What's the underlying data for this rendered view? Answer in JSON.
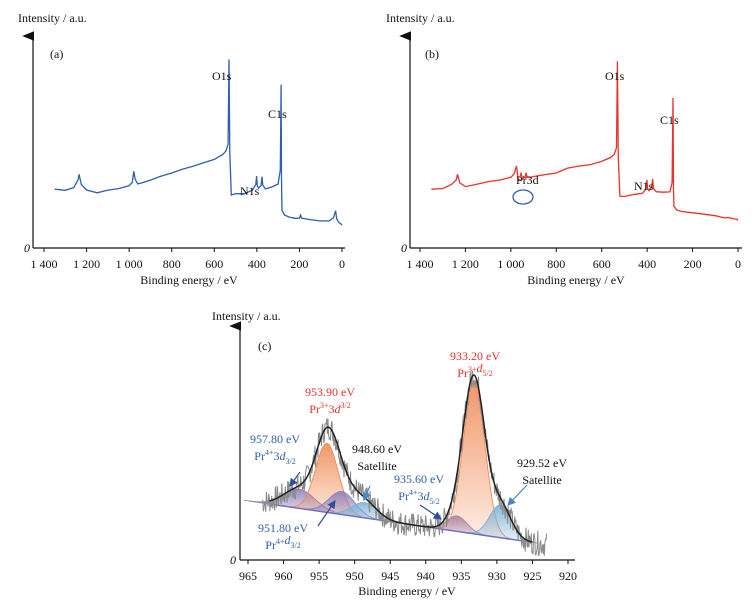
{
  "chart_data": [
    {
      "type": "line",
      "panel": "(a)",
      "ylabel": "Intensity / a.u.",
      "xlabel": "Binding energy / eV",
      "origin_label": "0",
      "xlim": [
        1400,
        0
      ],
      "xticks": [
        "1 400",
        "1 200",
        "1 000",
        "800",
        "600",
        "400",
        "200",
        "0"
      ],
      "xtick_values": [
        1400,
        1200,
        1000,
        800,
        600,
        400,
        200,
        0
      ],
      "color": "#2f5fae",
      "x": [
        1350,
        1300,
        1260,
        1240,
        1235,
        1225,
        1200,
        1150,
        1100,
        1050,
        1000,
        985,
        978,
        972,
        960,
        940,
        900,
        850,
        800,
        750,
        700,
        650,
        600,
        560,
        545,
        535,
        531,
        527,
        520,
        500,
        460,
        420,
        405,
        401,
        398,
        392,
        380,
        376,
        372,
        360,
        330,
        300,
        290,
        286,
        284,
        282,
        270,
        250,
        220,
        200,
        195,
        190,
        150,
        100,
        60,
        40,
        30,
        25,
        15,
        5,
        0
      ],
      "y": [
        0.24,
        0.24,
        0.25,
        0.3,
        0.33,
        0.27,
        0.24,
        0.22,
        0.23,
        0.24,
        0.26,
        0.28,
        0.34,
        0.3,
        0.27,
        0.28,
        0.3,
        0.32,
        0.34,
        0.36,
        0.38,
        0.4,
        0.42,
        0.44,
        0.46,
        0.5,
        1.0,
        0.45,
        0.2,
        0.21,
        0.22,
        0.24,
        0.27,
        0.32,
        0.26,
        0.25,
        0.27,
        0.32,
        0.26,
        0.24,
        0.25,
        0.27,
        0.35,
        0.85,
        0.3,
        0.12,
        0.09,
        0.08,
        0.07,
        0.07,
        0.09,
        0.07,
        0.06,
        0.05,
        0.05,
        0.07,
        0.11,
        0.06,
        0.04,
        0.03,
        0.03
      ],
      "annotations": [
        "O1s",
        "N1s",
        "C1s"
      ]
    },
    {
      "type": "line",
      "panel": "(b)",
      "ylabel": "Intensity / a.u.",
      "xlabel": "Binding energy / eV",
      "origin_label": "0",
      "xlim": [
        1400,
        0
      ],
      "xticks": [
        "1 400",
        "1 200",
        "1 000",
        "800",
        "600",
        "400",
        "200",
        "0"
      ],
      "xtick_values": [
        1400,
        1200,
        1000,
        800,
        600,
        400,
        200,
        0
      ],
      "color": "#e8332a",
      "x": [
        1350,
        1300,
        1260,
        1240,
        1235,
        1225,
        1200,
        1150,
        1100,
        1050,
        1000,
        985,
        975,
        968,
        958,
        950,
        945,
        935,
        930,
        920,
        900,
        850,
        800,
        750,
        700,
        650,
        600,
        560,
        545,
        535,
        531,
        527,
        520,
        500,
        460,
        420,
        405,
        401,
        398,
        392,
        380,
        376,
        372,
        360,
        330,
        300,
        290,
        286,
        284,
        282,
        270,
        250,
        200,
        150,
        100,
        60,
        40,
        20,
        5,
        0
      ],
      "y": [
        0.24,
        0.25,
        0.27,
        0.3,
        0.33,
        0.28,
        0.26,
        0.27,
        0.28,
        0.29,
        0.31,
        0.33,
        0.37,
        0.3,
        0.29,
        0.3,
        0.32,
        0.31,
        0.32,
        0.31,
        0.32,
        0.33,
        0.34,
        0.36,
        0.37,
        0.38,
        0.4,
        0.42,
        0.44,
        0.48,
        1.0,
        0.43,
        0.2,
        0.2,
        0.21,
        0.22,
        0.25,
        0.3,
        0.24,
        0.23,
        0.25,
        0.3,
        0.24,
        0.22,
        0.22,
        0.23,
        0.28,
        0.78,
        0.25,
        0.14,
        0.12,
        0.11,
        0.1,
        0.09,
        0.08,
        0.07,
        0.07,
        0.06,
        0.06,
        0.05
      ],
      "annotations": [
        "O1s",
        "N1s",
        "C1s",
        "Pr3d"
      ]
    },
    {
      "type": "line",
      "panel": "(c)",
      "ylabel": "Intensity / a.u.",
      "xlabel": "Binding energy / eV",
      "origin_label": "0",
      "xlim": [
        965,
        920
      ],
      "xticks": [
        "965",
        "960",
        "955",
        "950",
        "945",
        "940",
        "935",
        "930",
        "925",
        "920"
      ],
      "xtick_values": [
        965,
        960,
        955,
        950,
        945,
        940,
        935,
        930,
        925,
        920
      ],
      "background": {
        "x": [
          962,
          925
        ],
        "y": [
          0.25,
          0.05
        ]
      },
      "peaks": [
        {
          "center": 957.8,
          "height": 0.1,
          "width": 2.2,
          "color": "#8e7fb8",
          "label": "957.80 eV",
          "sublabel": "Pr4+3d3/2",
          "label_color": "#2f5fae"
        },
        {
          "center": 953.9,
          "height": 0.36,
          "width": 1.6,
          "color": "#f08a55",
          "label": "953.90 eV",
          "sublabel": "Pr3+3d3/2",
          "label_color": "#e8332a"
        },
        {
          "center": 951.8,
          "height": 0.12,
          "width": 1.8,
          "color": "#8e7fb8",
          "label": "951.80 eV",
          "sublabel": "Pr4+d3/2",
          "label_color": "#2f5fae"
        },
        {
          "center": 948.6,
          "height": 0.08,
          "width": 1.8,
          "color": "#7fb2d6",
          "label": "948.60 eV",
          "sublabel": "Satellite",
          "label_color": "#111111"
        },
        {
          "center": 935.6,
          "height": 0.08,
          "width": 1.4,
          "color": "#8e7fb8",
          "label": "935.60 eV",
          "sublabel": "Pr4+3d5/2",
          "label_color": "#2f5fae"
        },
        {
          "center": 933.2,
          "height": 0.8,
          "width": 1.5,
          "color": "#f08a55",
          "label": "933.20 eV",
          "sublabel": "Pr3+d5/2",
          "label_color": "#e8332a"
        },
        {
          "center": 929.52,
          "height": 0.17,
          "width": 1.5,
          "color": "#7fb2d6",
          "label": "929.52 eV",
          "sublabel": "Satellite",
          "label_color": "#111111"
        }
      ]
    }
  ],
  "labels": {
    "a": {
      "o1s": "O1s",
      "n1s": "N1s",
      "c1s": "C1s"
    },
    "b": {
      "o1s": "O1s",
      "n1s": "N1s",
      "c1s": "C1s",
      "pr3d": "Pr3d"
    },
    "c": {
      "p1": {
        "val": "957.80 eV",
        "pre": "Pr",
        "sup": "4+",
        "mid": "3",
        "d": "d",
        "sub": "3/2"
      },
      "p2": {
        "val": "953.90 eV",
        "pre": "Pr",
        "sup": "3+",
        "mid": "3",
        "d": "d",
        "sub": "3/2"
      },
      "p3": {
        "val": "951.80 eV",
        "pre": "Pr",
        "sup": "4+",
        "mid": "",
        "d": "d",
        "sub": "3/2"
      },
      "p4": {
        "val": "948.60 eV",
        "name": "Satellite"
      },
      "p5": {
        "val": "935.60 eV",
        "pre": "Pr",
        "sup": "4+",
        "mid": "3",
        "d": "d",
        "sub": "5/2"
      },
      "p6": {
        "val": "933.20 eV",
        "pre": "Pr",
        "sup": "3+",
        "mid": "",
        "d": "d",
        "sub": "5/2"
      },
      "p7": {
        "val": "929.52 eV",
        "name": "Satellite"
      }
    }
  }
}
